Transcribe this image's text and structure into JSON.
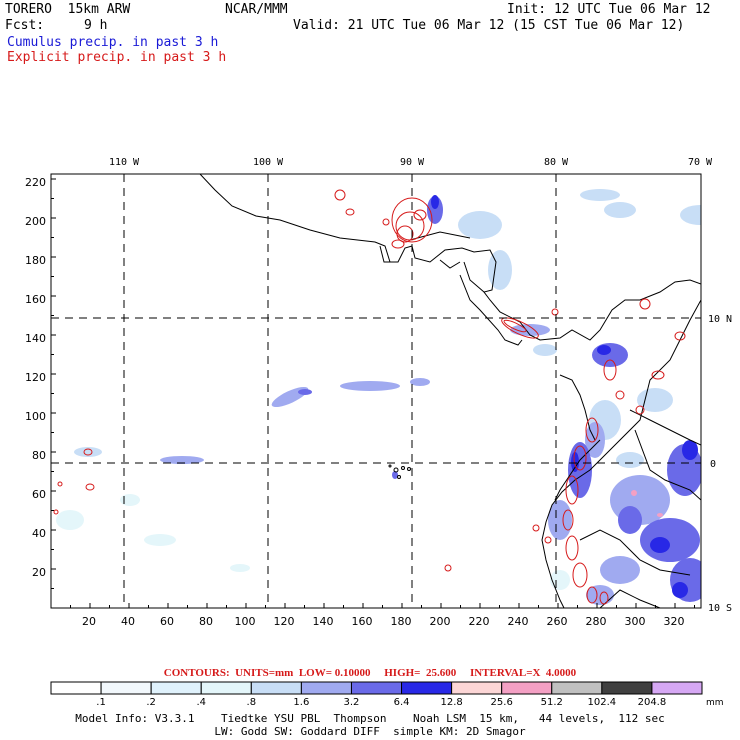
{
  "header": {
    "model": "TORERO  15km ARW",
    "org": "NCAR/MMM",
    "init": "Init: 12 UTC Tue 06 Mar 12",
    "fcst_label": "Fcst:",
    "fcst_value": "9 h",
    "valid": "Valid: 21 UTC Tue 06 Mar 12 (15 CST Tue 06 Mar 12)",
    "cumulus": "Cumulus precip. in past 3 h",
    "explicit": "Explicit precip. in past 3 h"
  },
  "map": {
    "top_lon_labels": [
      "110 W",
      "100 W",
      "90 W",
      "80 W",
      "70 W"
    ],
    "right_lat_labels": [
      "10 N",
      "0",
      "10 S"
    ],
    "y_ticks": [
      "20",
      "40",
      "60",
      "80",
      "100",
      "120",
      "140",
      "160",
      "180",
      "200",
      "220"
    ],
    "x_ticks": [
      "20",
      "40",
      "60",
      "80",
      "100",
      "120",
      "140",
      "160",
      "180",
      "200",
      "220",
      "240",
      "260",
      "280",
      "300",
      "320"
    ]
  },
  "contours": {
    "text": "CONTOURS:  UNITS=mm  LOW= 0.10000     HIGH=  25.600     INTERVAL=X  4.0000"
  },
  "colorbar": {
    "labels": [
      ".1",
      ".2",
      ".4",
      ".8",
      "1.6",
      "3.2",
      "6.4",
      "12.8",
      "25.6",
      "51.2",
      "102.4",
      "204.8"
    ],
    "unit": "mm",
    "colors": [
      "#ffffff",
      "#f2f8fc",
      "#e0f2fc",
      "#e4f6fa",
      "#c8def6",
      "#a0aaf0",
      "#6a6ae8",
      "#2828e6",
      "#fcd6d6",
      "#f4a0c4",
      "#c0c0c0",
      "#404040",
      "#d6a8f4"
    ]
  },
  "footer": {
    "line1": "Model Info: V3.3.1    Tiedtke YSU PBL  Thompson    Noah LSM  15 km,   44 levels,  112 sec",
    "line2": "LW: Godd SW: Goddard DIFF  simple KM: 2D Smagor"
  }
}
